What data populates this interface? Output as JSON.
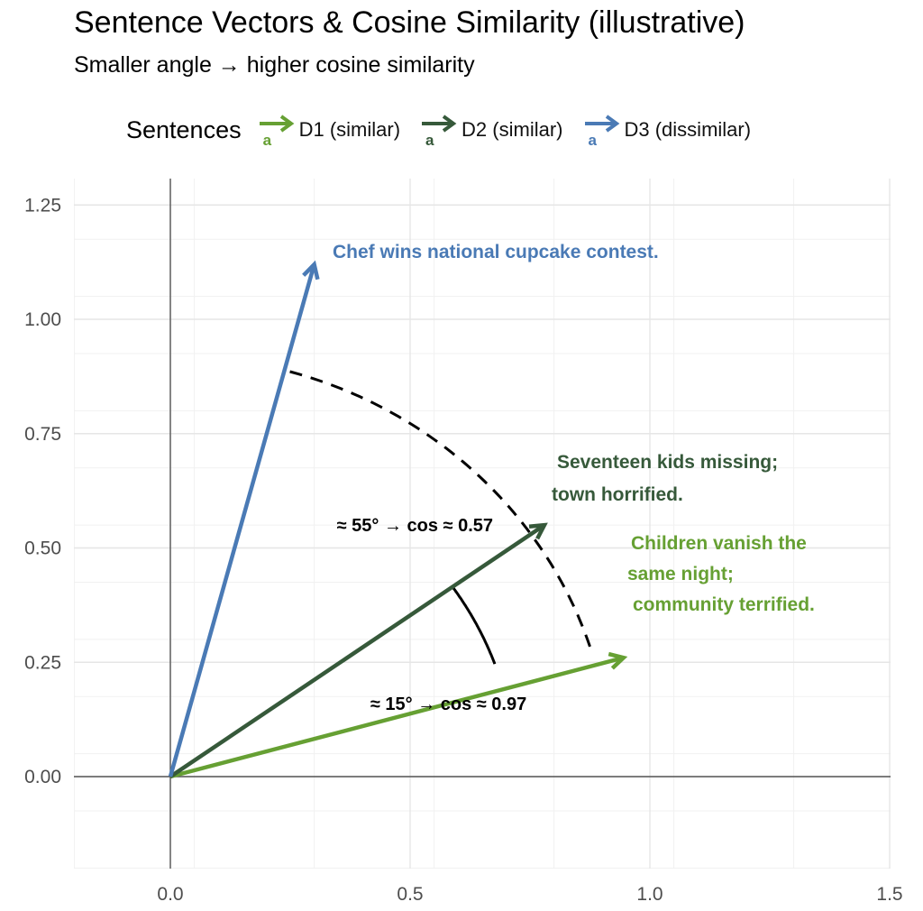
{
  "chart_data": {
    "type": "vector",
    "title": "Sentence Vectors & Cosine Similarity (illustrative)",
    "subtitle": "Smaller angle → higher cosine similarity",
    "xlabel": "",
    "ylabel": "",
    "xlim": [
      -0.2,
      1.5
    ],
    "ylim": [
      -0.2,
      1.25
    ],
    "x_ticks": [
      "0.0",
      "0.5",
      "1.0",
      "1.5"
    ],
    "x_tick_values": [
      0,
      0.5,
      1.0,
      1.5
    ],
    "y_ticks": [
      "0.00",
      "0.25",
      "0.50",
      "0.75",
      "1.00",
      "1.25"
    ],
    "y_tick_values": [
      0,
      0.25,
      0.5,
      0.75,
      1.0,
      1.25
    ],
    "grid": true,
    "legend": {
      "title": "Sentences",
      "position": "top",
      "key_letter": "a",
      "entries": [
        {
          "label": "D1 (similar)",
          "color": "#66a033"
        },
        {
          "label": "D2 (similar)",
          "color": "#36593a"
        },
        {
          "label": "D3 (dissimilar)",
          "color": "#4a7ab5"
        }
      ]
    },
    "series": [
      {
        "name": "D1 (similar)",
        "color": "#66a033",
        "x0": 0,
        "y0": 0,
        "x1": 0.945,
        "y1": 0.26,
        "label_lines": [
          "Children vanish the",
          "same night;",
          "community terrified."
        ]
      },
      {
        "name": "D2 (similar)",
        "color": "#36593a",
        "x0": 0,
        "y0": 0,
        "x1": 0.78,
        "y1": 0.55,
        "label_lines": [
          "Seventeen kids missing;",
          "town horrified."
        ]
      },
      {
        "name": "D3 (dissimilar)",
        "color": "#4a7ab5",
        "x0": 0,
        "y0": 0,
        "x1": 0.3,
        "y1": 1.12,
        "label_lines": [
          "Chef wins national cupcake contest."
        ]
      }
    ],
    "angle_arcs": [
      {
        "style": "solid",
        "radius": 0.72,
        "from_deg": 20,
        "to_deg": 35
      },
      {
        "style": "dashed",
        "radius": 0.92,
        "from_deg": 18,
        "to_deg": 75
      }
    ],
    "annotations": [
      {
        "text": "≈ 15°  →  cos ≈ 0.97",
        "x": 0.58,
        "y": 0.16
      },
      {
        "text": "≈ 55°  →  cos ≈ 0.57",
        "x": 0.51,
        "y": 0.55
      }
    ]
  }
}
